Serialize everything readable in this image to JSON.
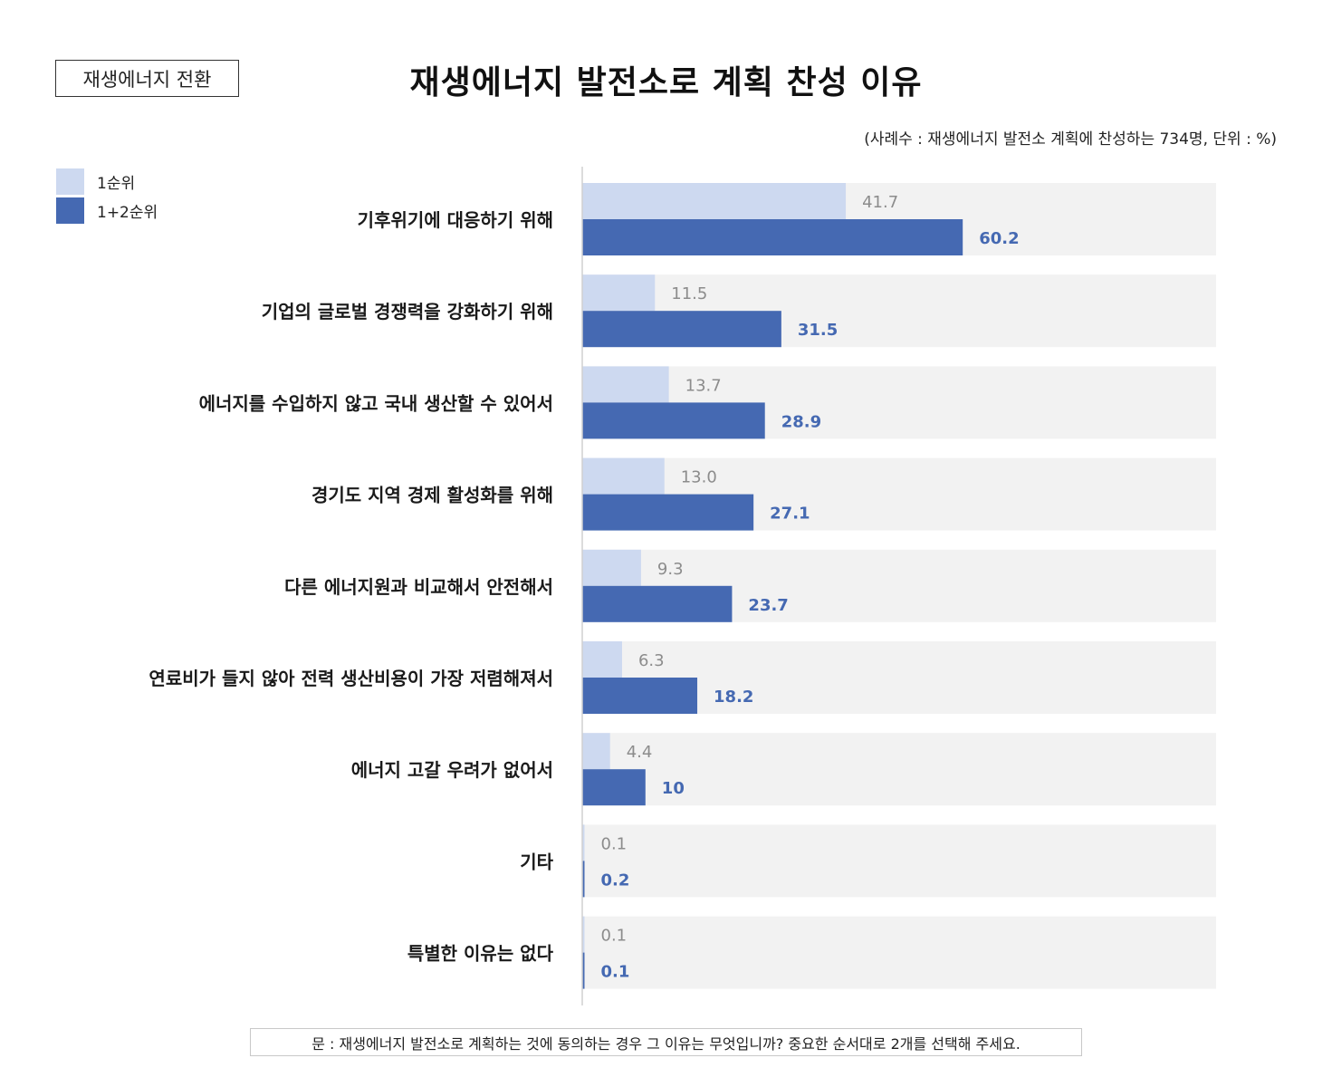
{
  "tag": "재생에너지 전환",
  "title": "재생에너지 발전소로 계획 찬성 이유",
  "note": "(사례수 : 재생에너지 발전소 계획에 찬성하는 734명, 단위 : %)",
  "footer": "문 : 재생에너지 발전소로 계획하는 것에 동의하는 경우 그 이유는 무엇입니까? 중요한 순서대로 2개를 선택해 주세요.",
  "colors": {
    "first": "#cdd9f0",
    "both": "#4569b2",
    "track": "#f2f2f2",
    "first_label": "#8c8c8c",
    "both_label": "#4569b2"
  },
  "chart_data": {
    "type": "bar",
    "orientation": "horizontal",
    "categories": [
      "기후위기에 대응하기 위해",
      "기업의 글로벌 경쟁력을 강화하기 위해",
      "에너지를 수입하지 않고 국내 생산할 수 있어서",
      "경기도 지역 경제 활성화를 위해",
      "다른 에너지원과 비교해서 안전해서",
      "연료비가 들지 않아 전력 생산비용이 가장 저렴해져서",
      "에너지 고갈 우려가 없어서",
      "기타",
      "특별한 이유는 없다"
    ],
    "series": [
      {
        "name": "1순위",
        "values": [
          41.7,
          11.5,
          13.7,
          13.0,
          9.3,
          6.3,
          4.4,
          0.1,
          0.1
        ],
        "labels": [
          "41.7",
          "11.5",
          "13.7",
          "13.0",
          "9.3",
          "6.3",
          "4.4",
          "0.1",
          "0.1"
        ]
      },
      {
        "name": "1+2순위",
        "values": [
          60.2,
          31.5,
          28.9,
          27.1,
          23.7,
          18.2,
          10,
          0.2,
          0.1
        ],
        "labels": [
          "60.2",
          "31.5",
          "28.9",
          "27.1",
          "23.7",
          "18.2",
          "10",
          "0.2",
          "0.1"
        ]
      }
    ],
    "xlim": [
      0,
      100
    ],
    "legend": "top-left",
    "grid": false
  }
}
